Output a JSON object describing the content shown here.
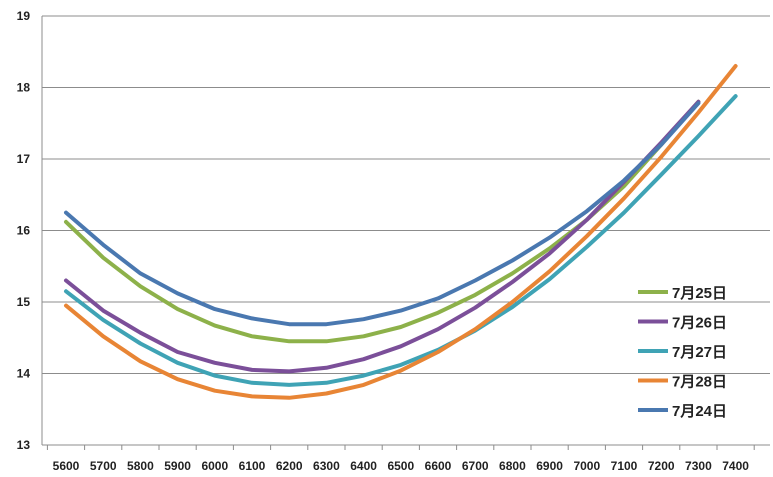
{
  "chart_data": {
    "type": "line",
    "title": "",
    "xlabel": "",
    "ylabel": "",
    "x": [
      5600,
      5700,
      5800,
      5900,
      6000,
      6100,
      6200,
      6300,
      6400,
      6500,
      6600,
      6700,
      6800,
      6900,
      7000,
      7100,
      7200,
      7300,
      7400
    ],
    "x_tick_labels": [
      "5600",
      "5700",
      "5800",
      "5900",
      "6000",
      "6100",
      "6200",
      "6300",
      "6400",
      "6500",
      "6600",
      "6700",
      "6800",
      "6900",
      "7000",
      "7100",
      "7200",
      "7300",
      "7400"
    ],
    "y_tick_labels": [
      "13",
      "14",
      "15",
      "16",
      "17",
      "18",
      "19"
    ],
    "ylim": [
      13,
      19
    ],
    "grid": "horizontal",
    "legend_position": "right",
    "series": [
      {
        "name": "7月25日",
        "color": "#8db14a",
        "values": [
          16.12,
          15.62,
          15.22,
          14.9,
          14.67,
          14.52,
          14.45,
          14.45,
          14.52,
          14.65,
          14.85,
          15.1,
          15.4,
          15.75,
          16.15,
          16.62,
          17.2,
          17.8,
          null
        ]
      },
      {
        "name": "7月26日",
        "color": "#7b4f99",
        "values": [
          15.3,
          14.88,
          14.57,
          14.3,
          14.15,
          14.05,
          14.03,
          14.08,
          14.2,
          14.38,
          14.62,
          14.92,
          15.28,
          15.68,
          16.15,
          16.68,
          17.23,
          17.8,
          null
        ]
      },
      {
        "name": "7月27日",
        "color": "#3fa3b5",
        "values": [
          15.15,
          14.75,
          14.42,
          14.15,
          13.97,
          13.87,
          13.84,
          13.87,
          13.97,
          14.12,
          14.33,
          14.6,
          14.93,
          15.32,
          15.77,
          16.25,
          16.78,
          17.32,
          17.88
        ]
      },
      {
        "name": "7月28日",
        "color": "#e88535",
        "values": [
          14.95,
          14.52,
          14.17,
          13.92,
          13.76,
          13.68,
          13.66,
          13.72,
          13.84,
          14.04,
          14.3,
          14.62,
          15.0,
          15.43,
          15.92,
          16.45,
          17.03,
          17.65,
          18.3
        ]
      },
      {
        "name": "7月24日",
        "color": "#4a78b0",
        "values": [
          16.25,
          15.8,
          15.4,
          15.12,
          14.9,
          14.77,
          14.69,
          14.69,
          14.76,
          14.88,
          15.05,
          15.3,
          15.58,
          15.9,
          16.27,
          16.7,
          17.2,
          17.78,
          null
        ]
      }
    ]
  }
}
